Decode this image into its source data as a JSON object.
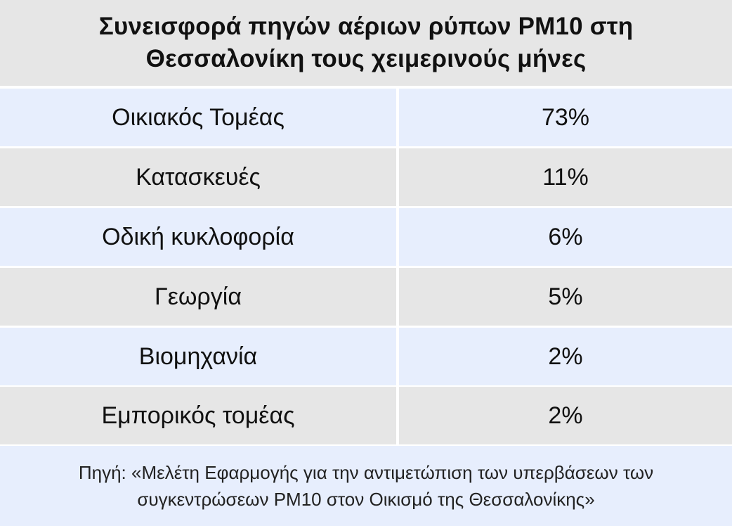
{
  "table": {
    "title_line1": "Συνεισφορά πηγών αέριων ρύπων PM10 στη",
    "title_line2": "Θεσσαλονίκη τους χειμερινούς μήνες",
    "rows": [
      {
        "label": "Οικιακός Τομέας",
        "value": "73%"
      },
      {
        "label": "Κατασκευές",
        "value": "11%"
      },
      {
        "label": "Οδική κυκλοφορία",
        "value": "6%"
      },
      {
        "label": "Γεωργία",
        "value": "5%"
      },
      {
        "label": "Βιομηχανία",
        "value": "2%"
      },
      {
        "label": "Εμπορικός τομέας",
        "value": "2%"
      }
    ],
    "source_line1": "Πηγή: «Μελέτη Εφαρμογής για την αντιμετώπιση των υπερβάσεων των",
    "source_line2": "συγκεντρώσεων PM10 στον Οικισμό της Θεσσαλονίκης»"
  },
  "colors": {
    "header_bg": "#e6e6e6",
    "row_blue": "#e7eefd",
    "row_gray": "#e6e6e6"
  }
}
